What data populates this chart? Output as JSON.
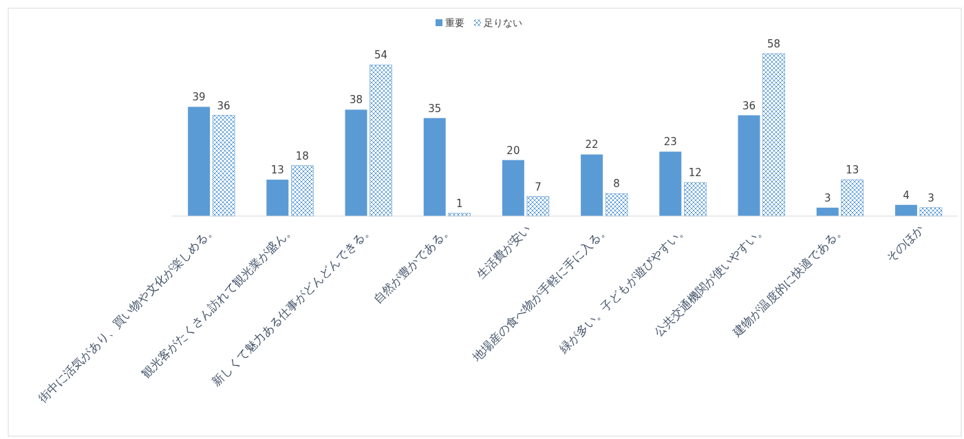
{
  "chart_data": {
    "type": "bar",
    "categories": [
      "街中に活気があり、買い物や文化が楽しめる。",
      "観光客がたくさん訪れて観光業が盛ん。",
      "新しくて魅力ある仕事がどんどんできる。",
      "自然が豊かである。",
      "生活費が安い",
      "地場産の食べ物が手軽に手に入る。",
      "緑が多い。子どもが遊びやすい。",
      "公共交通機関が使いやすい。",
      "建物が温度的に快適である。",
      "そのほか"
    ],
    "series": [
      {
        "name": "重要",
        "color": "#5b9bd5",
        "values": [
          39,
          13,
          38,
          35,
          20,
          22,
          23,
          36,
          3,
          4
        ]
      },
      {
        "name": "足りない",
        "color": "#5b9bd5",
        "values": [
          36,
          18,
          54,
          1,
          7,
          8,
          12,
          58,
          13,
          3
        ]
      }
    ],
    "data_labels": true,
    "legend": "top"
  }
}
